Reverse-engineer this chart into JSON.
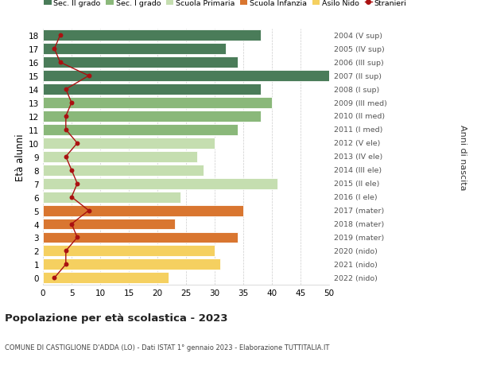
{
  "ages": [
    18,
    17,
    16,
    15,
    14,
    13,
    12,
    11,
    10,
    9,
    8,
    7,
    6,
    5,
    4,
    3,
    2,
    1,
    0
  ],
  "bar_values": [
    38,
    32,
    34,
    50,
    38,
    40,
    38,
    34,
    30,
    27,
    28,
    41,
    24,
    35,
    23,
    34,
    30,
    31,
    22
  ],
  "stranieri": [
    3,
    2,
    3,
    8,
    4,
    5,
    4,
    4,
    6,
    4,
    5,
    6,
    5,
    8,
    5,
    6,
    4,
    4,
    2
  ],
  "right_labels": [
    "2004 (V sup)",
    "2005 (IV sup)",
    "2006 (III sup)",
    "2007 (II sup)",
    "2008 (I sup)",
    "2009 (III med)",
    "2010 (II med)",
    "2011 (I med)",
    "2012 (V ele)",
    "2013 (IV ele)",
    "2014 (III ele)",
    "2015 (II ele)",
    "2016 (I ele)",
    "2017 (mater)",
    "2018 (mater)",
    "2019 (mater)",
    "2020 (nido)",
    "2021 (nido)",
    "2022 (nido)"
  ],
  "bar_colors": [
    "#4a7c59",
    "#4a7c59",
    "#4a7c59",
    "#4a7c59",
    "#4a7c59",
    "#8ab87a",
    "#8ab87a",
    "#8ab87a",
    "#c5deb0",
    "#c5deb0",
    "#c5deb0",
    "#c5deb0",
    "#c5deb0",
    "#d97630",
    "#d97630",
    "#d97630",
    "#f5d060",
    "#f5d060",
    "#f5d060"
  ],
  "legend_labels": [
    "Sec. II grado",
    "Sec. I grado",
    "Scuola Primaria",
    "Scuola Infanzia",
    "Asilo Nido",
    "Stranieri"
  ],
  "legend_colors": [
    "#4a7c59",
    "#8ab87a",
    "#c5deb0",
    "#d97630",
    "#f5d060",
    "#aa1111"
  ],
  "stranieri_color": "#aa1111",
  "title": "Popolazione per età scolastica - 2023",
  "subtitle": "COMUNE DI CASTIGLIONE D'ADDA (LO) - Dati ISTAT 1° gennaio 2023 - Elaborazione TUTTITALIA.IT",
  "ylabel_left": "Età alunni",
  "ylabel_right": "Anni di nascita",
  "xlim": [
    0,
    50
  ],
  "xticks": [
    0,
    5,
    10,
    15,
    20,
    25,
    30,
    35,
    40,
    45,
    50
  ],
  "bg_color": "#ffffff",
  "grid_color": "#cccccc"
}
